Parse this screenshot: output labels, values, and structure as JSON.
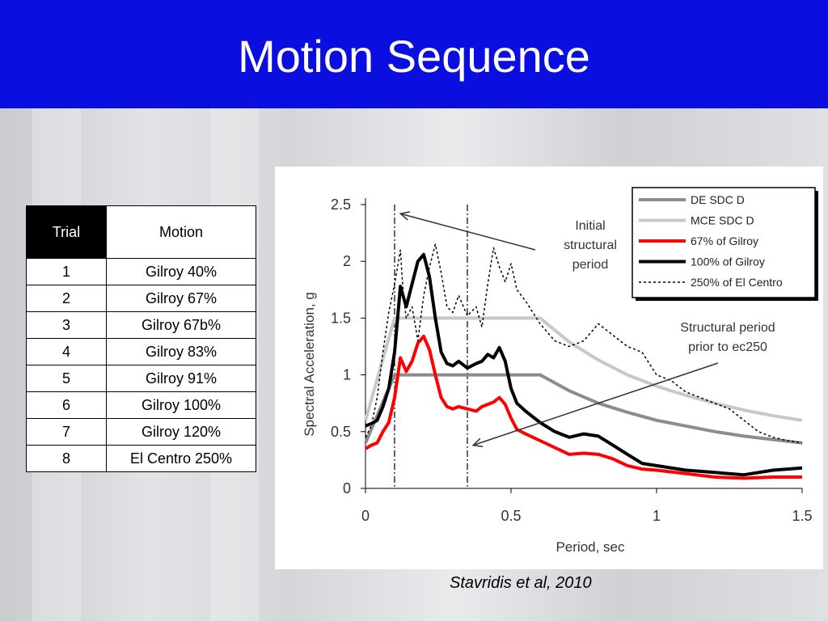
{
  "slide": {
    "title": "Motion Sequence",
    "citation": "Stavridis et al, 2010"
  },
  "table": {
    "header_trial": "Trial",
    "header_motion": "Motion",
    "rows": [
      {
        "trial": "1",
        "motion": "Gilroy 40%"
      },
      {
        "trial": "2",
        "motion": "Gilroy 67%"
      },
      {
        "trial": "3",
        "motion": "Gilroy 67b%"
      },
      {
        "trial": "4",
        "motion": "Gilroy 83%"
      },
      {
        "trial": "5",
        "motion": "Gilroy 91%"
      },
      {
        "trial": "6",
        "motion": "Gilroy 100%"
      },
      {
        "trial": "7",
        "motion": "Gilroy 120%"
      },
      {
        "trial": "8",
        "motion": "El Centro 250%"
      }
    ]
  },
  "chart_data": {
    "type": "line",
    "title": "",
    "xlabel": "Period, sec",
    "ylabel": "Spectral Acceleration, g",
    "xlim": [
      0,
      1.5
    ],
    "ylim": [
      0,
      2.5
    ],
    "xticks": [
      0,
      0.5,
      1,
      1.5
    ],
    "xtick_labels": [
      "0",
      "0.5",
      "1",
      "1.5"
    ],
    "yticks": [
      0,
      0.5,
      1,
      1.5,
      2,
      2.5
    ],
    "ytick_labels": [
      "0",
      "0.5",
      "1",
      "1.5",
      "2",
      "2.5"
    ],
    "vlines": [
      {
        "x": 0.1,
        "style": "dashdot"
      },
      {
        "x": 0.35,
        "style": "dashdot"
      }
    ],
    "annotations": [
      {
        "name": "initial-period",
        "lines": [
          "Initial",
          "structural",
          "period"
        ],
        "arrow_to": [
          0.12,
          2.42
        ]
      },
      {
        "name": "structural-period",
        "lines": [
          "Structural period",
          "prior to ec250"
        ],
        "arrow_to": [
          0.37,
          0.38
        ]
      }
    ],
    "series": [
      {
        "name": "DE SDC D",
        "color": "#8c8c8c",
        "width": 4,
        "dash": "",
        "x": [
          0,
          0.02,
          0.05,
          0.08,
          0.1,
          0.12,
          0.6,
          0.7,
          0.8,
          0.9,
          1.0,
          1.1,
          1.2,
          1.3,
          1.4,
          1.5
        ],
        "y": [
          0.4,
          0.52,
          0.7,
          0.88,
          1.0,
          1.0,
          1.0,
          0.86,
          0.75,
          0.67,
          0.6,
          0.55,
          0.5,
          0.46,
          0.43,
          0.4
        ]
      },
      {
        "name": "MCE SDC D",
        "color": "#c8c8c8",
        "width": 4,
        "dash": "",
        "x": [
          0,
          0.02,
          0.05,
          0.08,
          0.1,
          0.12,
          0.6,
          0.7,
          0.8,
          0.9,
          1.0,
          1.1,
          1.2,
          1.3,
          1.4,
          1.5
        ],
        "y": [
          0.6,
          0.78,
          1.05,
          1.32,
          1.5,
          1.5,
          1.5,
          1.29,
          1.13,
          1.0,
          0.9,
          0.82,
          0.75,
          0.69,
          0.64,
          0.6
        ]
      },
      {
        "name": "67% of Gilroy",
        "color": "#ff0000",
        "width": 4,
        "dash": "",
        "x": [
          0,
          0.02,
          0.04,
          0.06,
          0.08,
          0.1,
          0.12,
          0.14,
          0.16,
          0.18,
          0.2,
          0.22,
          0.24,
          0.26,
          0.28,
          0.3,
          0.32,
          0.35,
          0.38,
          0.4,
          0.42,
          0.44,
          0.46,
          0.48,
          0.5,
          0.52,
          0.55,
          0.6,
          0.65,
          0.7,
          0.75,
          0.8,
          0.85,
          0.9,
          0.95,
          1.0,
          1.1,
          1.2,
          1.3,
          1.4,
          1.5
        ],
        "y": [
          0.35,
          0.38,
          0.4,
          0.5,
          0.58,
          0.8,
          1.15,
          1.03,
          1.12,
          1.28,
          1.34,
          1.22,
          1.0,
          0.8,
          0.72,
          0.7,
          0.72,
          0.7,
          0.68,
          0.72,
          0.74,
          0.76,
          0.8,
          0.74,
          0.62,
          0.52,
          0.48,
          0.42,
          0.36,
          0.3,
          0.31,
          0.3,
          0.26,
          0.2,
          0.17,
          0.16,
          0.13,
          0.1,
          0.09,
          0.1,
          0.1
        ]
      },
      {
        "name": "100% of Gilroy",
        "color": "#000000",
        "width": 4,
        "dash": "",
        "x": [
          0,
          0.02,
          0.04,
          0.06,
          0.08,
          0.1,
          0.12,
          0.14,
          0.16,
          0.18,
          0.2,
          0.22,
          0.24,
          0.26,
          0.28,
          0.3,
          0.32,
          0.35,
          0.38,
          0.4,
          0.42,
          0.44,
          0.46,
          0.48,
          0.5,
          0.52,
          0.55,
          0.6,
          0.65,
          0.7,
          0.75,
          0.8,
          0.85,
          0.9,
          0.95,
          1.0,
          1.1,
          1.2,
          1.3,
          1.4,
          1.5
        ],
        "y": [
          0.55,
          0.57,
          0.6,
          0.72,
          0.88,
          1.2,
          1.78,
          1.6,
          1.8,
          2.0,
          2.06,
          1.86,
          1.5,
          1.2,
          1.1,
          1.08,
          1.12,
          1.06,
          1.1,
          1.12,
          1.18,
          1.15,
          1.24,
          1.12,
          0.88,
          0.75,
          0.68,
          0.58,
          0.5,
          0.45,
          0.48,
          0.46,
          0.38,
          0.3,
          0.22,
          0.2,
          0.16,
          0.14,
          0.12,
          0.16,
          0.18
        ]
      },
      {
        "name": "250% of El Centro",
        "color": "#000000",
        "width": 1.5,
        "dash": "3,3",
        "x": [
          0,
          0.02,
          0.04,
          0.06,
          0.08,
          0.1,
          0.12,
          0.13,
          0.14,
          0.16,
          0.18,
          0.2,
          0.22,
          0.24,
          0.26,
          0.28,
          0.3,
          0.32,
          0.35,
          0.38,
          0.4,
          0.42,
          0.44,
          0.46,
          0.48,
          0.5,
          0.52,
          0.55,
          0.6,
          0.65,
          0.7,
          0.75,
          0.8,
          0.85,
          0.9,
          0.95,
          1.0,
          1.05,
          1.1,
          1.15,
          1.2,
          1.25,
          1.3,
          1.35,
          1.4,
          1.45,
          1.5
        ],
        "y": [
          0.45,
          0.55,
          0.8,
          1.2,
          1.55,
          1.8,
          2.1,
          1.7,
          1.5,
          1.6,
          1.3,
          1.7,
          1.95,
          2.15,
          1.9,
          1.6,
          1.55,
          1.7,
          1.52,
          1.6,
          1.42,
          1.8,
          2.12,
          1.95,
          1.82,
          1.98,
          1.75,
          1.65,
          1.45,
          1.3,
          1.25,
          1.3,
          1.45,
          1.35,
          1.25,
          1.2,
          1.0,
          0.95,
          0.85,
          0.8,
          0.75,
          0.7,
          0.6,
          0.5,
          0.45,
          0.42,
          0.4
        ]
      }
    ]
  }
}
